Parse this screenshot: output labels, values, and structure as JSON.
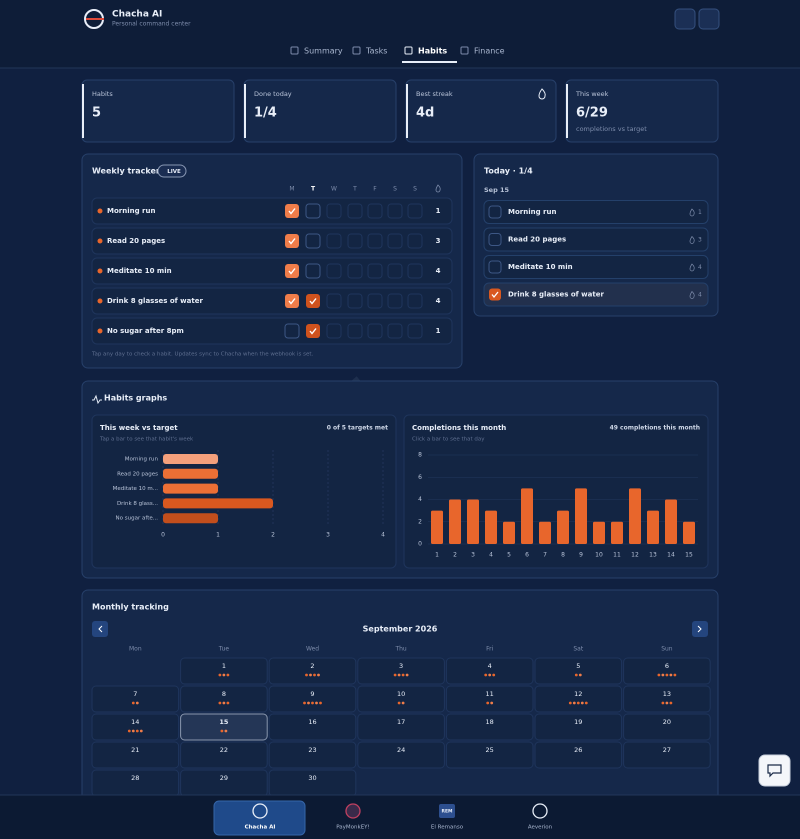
{
  "header": {
    "title": "Chacha AI",
    "subtitle": "Personal command center"
  },
  "tabs": [
    "Summary",
    "Tasks",
    "Habits",
    "Finance"
  ],
  "stats": [
    {
      "label": "Habits",
      "value": "5"
    },
    {
      "label": "Done today",
      "value": "1/4"
    },
    {
      "label": "Best streak",
      "value": "4d"
    },
    {
      "label": "This week",
      "value": "6/29",
      "note": "completions vs target"
    }
  ],
  "tracker": {
    "title": "Weekly tracker",
    "badge": "LIVE",
    "days": [
      "M",
      "T",
      "W",
      "T",
      "F",
      "S",
      "S"
    ],
    "today_column": 1,
    "habits": [
      {
        "name": "Morning run",
        "checks": [
          true,
          false,
          false,
          false,
          false,
          false,
          false
        ],
        "count": 1
      },
      {
        "name": "Read 20 pages",
        "checks": [
          true,
          false,
          false,
          false,
          false,
          false,
          false
        ],
        "count": 3
      },
      {
        "name": "Meditate 10 min",
        "checks": [
          true,
          false,
          false,
          false,
          false,
          false,
          false
        ],
        "count": 4
      },
      {
        "name": "Drink 8 glasses of water",
        "checks": [
          true,
          true,
          false,
          false,
          false,
          false,
          false
        ],
        "count": 4
      },
      {
        "name": "No sugar after 8pm",
        "checks": [
          false,
          true,
          false,
          false,
          false,
          false,
          false
        ],
        "count": 1
      }
    ],
    "footer": "Tap any day to check a habit. Updates sync to Chacha when the webhook is set."
  },
  "today": {
    "title": "Today · 1/4",
    "date": "Sep 15",
    "items": [
      {
        "name": "Morning run",
        "streak": 1,
        "done": false
      },
      {
        "name": "Read 20 pages",
        "streak": 3,
        "done": false
      },
      {
        "name": "Meditate 10 min",
        "streak": 4,
        "done": false
      },
      {
        "name": "Drink 8 glasses of water",
        "streak": 4,
        "done": true
      }
    ]
  },
  "graphs_title": "Habits graphs",
  "chart_data": [
    {
      "type": "hbar",
      "title": "This week vs target",
      "subtitle": "Tap a bar to see that habit's week",
      "summary": "0 of 5 targets met",
      "categories": [
        "Morning run",
        "Read 20 pages",
        "Meditate 10 m...",
        "Drink 8 glass...",
        "No sugar afte..."
      ],
      "values": [
        1,
        1,
        1,
        2,
        1
      ],
      "colors": [
        "#f4a07c",
        "#ec6f35",
        "#ec6f35",
        "#d9581f",
        "#c24e1c"
      ],
      "xlim": [
        0,
        4
      ],
      "xticks": [
        0,
        1,
        2,
        3,
        4
      ],
      "grid": true
    },
    {
      "type": "bar",
      "title": "Completions this month",
      "subtitle": "Click a bar to see that day",
      "summary": "49 completions this month",
      "categories": [
        "1",
        "2",
        "3",
        "4",
        "5",
        "6",
        "7",
        "8",
        "9",
        "10",
        "11",
        "12",
        "13",
        "14",
        "15"
      ],
      "values": [
        3,
        4,
        4,
        3,
        2,
        5,
        2,
        3,
        5,
        2,
        2,
        5,
        3,
        4,
        2
      ],
      "color": "#e8662c",
      "ylim": [
        0,
        8
      ],
      "yticks": [
        0,
        2,
        4,
        6,
        8
      ],
      "grid": true
    }
  ],
  "monthly": {
    "title": "Monthly tracking",
    "month": "September 2026",
    "weekdays": [
      "Mon",
      "Tue",
      "Wed",
      "Thu",
      "Fri",
      "Sat",
      "Sun"
    ],
    "days": [
      1,
      2,
      3,
      4,
      5,
      6,
      7,
      8,
      9,
      10,
      11,
      12,
      13,
      14,
      15,
      16,
      17,
      18,
      19,
      20,
      21,
      22,
      23,
      24,
      25,
      26,
      27,
      28,
      29,
      30
    ],
    "dots": [
      3,
      4,
      4,
      3,
      2,
      5,
      2,
      3,
      5,
      2,
      2,
      5,
      3,
      4,
      2,
      0,
      0,
      0,
      0,
      0,
      0,
      0,
      0,
      0,
      0,
      0,
      0,
      0,
      0,
      0
    ],
    "today": 15
  },
  "nav": [
    {
      "label": "Chacha AI"
    },
    {
      "label": "PayMonkEY!"
    },
    {
      "label": "El Remanso",
      "badge": "REM"
    },
    {
      "label": "Aeverion"
    }
  ]
}
